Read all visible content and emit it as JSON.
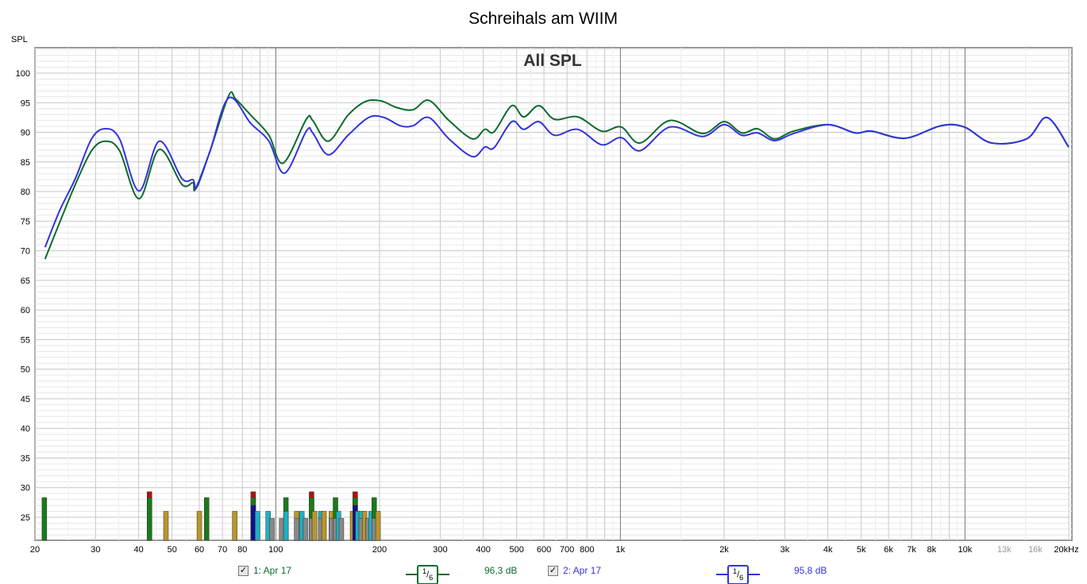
{
  "chart_data": {
    "type": "line",
    "title": "Schreihals am WIIM",
    "subtitle": "All SPL",
    "ylabel": "SPL",
    "xlabel": "Hz",
    "xscale": "log",
    "xlim": [
      20,
      20000
    ],
    "ylim": [
      21,
      104.3
    ],
    "yticks": [
      25,
      30,
      35,
      40,
      45,
      50,
      55,
      60,
      65,
      70,
      75,
      80,
      85,
      90,
      95,
      100
    ],
    "xticks": [
      {
        "v": 20,
        "l": "20"
      },
      {
        "v": 30,
        "l": "30"
      },
      {
        "v": 40,
        "l": "40"
      },
      {
        "v": 50,
        "l": "50"
      },
      {
        "v": 60,
        "l": "60"
      },
      {
        "v": 70,
        "l": "70"
      },
      {
        "v": 80,
        "l": "80"
      },
      {
        "v": 100,
        "l": "100"
      },
      {
        "v": 200,
        "l": "200"
      },
      {
        "v": 300,
        "l": "300"
      },
      {
        "v": 400,
        "l": "400"
      },
      {
        "v": 500,
        "l": "500"
      },
      {
        "v": 600,
        "l": "600"
      },
      {
        "v": 700,
        "l": "700"
      },
      {
        "v": 800,
        "l": "800"
      },
      {
        "v": 1000,
        "l": "1k"
      },
      {
        "v": 2000,
        "l": "2k"
      },
      {
        "v": 3000,
        "l": "3k"
      },
      {
        "v": 4000,
        "l": "4k"
      },
      {
        "v": 5000,
        "l": "5k"
      },
      {
        "v": 6000,
        "l": "6k"
      },
      {
        "v": 7000,
        "l": "7k"
      },
      {
        "v": 8000,
        "l": "8k"
      },
      {
        "v": 10000,
        "l": "10k"
      },
      {
        "v": 13000,
        "l": "13k",
        "muted": true
      },
      {
        "v": 16000,
        "l": "16k",
        "muted": true
      },
      {
        "v": 20000,
        "l": "20kHz"
      }
    ],
    "grid": true,
    "series": [
      {
        "name": "1: Apr 17",
        "color": "#0b6b2e",
        "smoothing": "1/6",
        "level": "96,3 dB",
        "visible": true,
        "points": [
          [
            21.4,
            68.6
          ],
          [
            23.6,
            74.8
          ],
          [
            26.2,
            81.2
          ],
          [
            29.2,
            86.9
          ],
          [
            32,
            88.5
          ],
          [
            35.2,
            86.9
          ],
          [
            40.1,
            78.8
          ],
          [
            45.9,
            87.1
          ],
          [
            53.4,
            81.2
          ],
          [
            57.5,
            81.5
          ],
          [
            58.4,
            80.4
          ],
          [
            64.5,
            86.9
          ],
          [
            73,
            96.2
          ],
          [
            76.5,
            95.6
          ],
          [
            84.6,
            92.9
          ],
          [
            95.5,
            89.5
          ],
          [
            105,
            84.8
          ],
          [
            122.6,
            92.2
          ],
          [
            128,
            92
          ],
          [
            142,
            88.5
          ],
          [
            162,
            92.9
          ],
          [
            182,
            95.2
          ],
          [
            202,
            95.3
          ],
          [
            224,
            94.2
          ],
          [
            250,
            93.8
          ],
          [
            278,
            95.4
          ],
          [
            318,
            92
          ],
          [
            372,
            88.9
          ],
          [
            404,
            90.5
          ],
          [
            430,
            90.1
          ],
          [
            484,
            94.5
          ],
          [
            524,
            92.6
          ],
          [
            580,
            94.5
          ],
          [
            644,
            92.2
          ],
          [
            752,
            92.6
          ],
          [
            883,
            90.2
          ],
          [
            1005,
            90.9
          ],
          [
            1141,
            88.2
          ],
          [
            1392,
            92
          ],
          [
            1733,
            89.8
          ],
          [
            2000,
            91.8
          ],
          [
            2250,
            89.9
          ],
          [
            2500,
            90.6
          ],
          [
            2800,
            88.9
          ],
          [
            3180,
            90.2
          ],
          [
            4000,
            91.3
          ],
          [
            4800,
            89.9
          ],
          [
            5350,
            90.2
          ],
          [
            6700,
            89
          ],
          [
            8500,
            91.1
          ],
          [
            9950,
            90.9
          ],
          [
            11950,
            88.2
          ],
          [
            15100,
            88.9
          ],
          [
            17300,
            92.5
          ],
          [
            20000,
            87.5
          ]
        ]
      },
      {
        "name": "2: Apr 17",
        "color": "#3333dd",
        "smoothing": "1/6",
        "level": "95,8 dB",
        "visible": true,
        "points": [
          [
            21.4,
            70.6
          ],
          [
            23.6,
            76.8
          ],
          [
            26.2,
            82.2
          ],
          [
            29.2,
            88.9
          ],
          [
            32,
            90.6
          ],
          [
            35.2,
            88.9
          ],
          [
            40.1,
            80.1
          ],
          [
            45.9,
            88.5
          ],
          [
            53.4,
            82.2
          ],
          [
            57.5,
            82
          ],
          [
            59,
            80.7
          ],
          [
            64.5,
            86.9
          ],
          [
            73,
            95.8
          ],
          [
            84.6,
            91.5
          ],
          [
            95.5,
            88.5
          ],
          [
            106,
            83.1
          ],
          [
            122.6,
            90.2
          ],
          [
            128,
            89.9
          ],
          [
            142,
            86.2
          ],
          [
            162,
            89.5
          ],
          [
            186,
            92.5
          ],
          [
            206,
            92.5
          ],
          [
            230,
            91.1
          ],
          [
            250,
            91.1
          ],
          [
            278,
            92.5
          ],
          [
            318,
            88.9
          ],
          [
            372,
            85.9
          ],
          [
            404,
            87.5
          ],
          [
            430,
            87.4
          ],
          [
            484,
            91.8
          ],
          [
            524,
            90.5
          ],
          [
            580,
            91.8
          ],
          [
            644,
            89.5
          ],
          [
            752,
            90.5
          ],
          [
            883,
            87.9
          ],
          [
            1005,
            89.1
          ],
          [
            1141,
            86.9
          ],
          [
            1392,
            90.9
          ],
          [
            1733,
            89.3
          ],
          [
            2000,
            91.3
          ],
          [
            2250,
            89.5
          ],
          [
            2500,
            89.9
          ],
          [
            2800,
            88.6
          ],
          [
            3180,
            89.8
          ],
          [
            4000,
            91.3
          ],
          [
            4800,
            89.9
          ],
          [
            5350,
            90.2
          ],
          [
            6700,
            89
          ],
          [
            8500,
            91.1
          ],
          [
            9950,
            90.9
          ],
          [
            11950,
            88.2
          ],
          [
            15100,
            88.9
          ],
          [
            17300,
            92.5
          ],
          [
            20000,
            87.5
          ]
        ]
      }
    ],
    "mode_bars": [
      {
        "f": 21.3,
        "segs": [
          [
            "#1a7a1a",
            28.3
          ]
        ]
      },
      {
        "f": 43,
        "segs": [
          [
            "#b01010",
            29.3
          ],
          [
            "#1a7a1a",
            28.3
          ]
        ]
      },
      {
        "f": 48,
        "segs": [
          [
            "#b8962a",
            26
          ]
        ]
      },
      {
        "f": 60,
        "segs": [
          [
            "#b8962a",
            26
          ]
        ]
      },
      {
        "f": 63,
        "segs": [
          [
            "#1a7a1a",
            28.3
          ]
        ]
      },
      {
        "f": 76,
        "segs": [
          [
            "#b8962a",
            26
          ]
        ]
      },
      {
        "f": 86,
        "segs": [
          [
            "#b01010",
            29.3
          ],
          [
            "#1a7a1a",
            28.3
          ],
          [
            "#101090",
            27
          ]
        ]
      },
      {
        "f": 88.5,
        "segs": [
          [
            "#20b0c0",
            26
          ]
        ]
      },
      {
        "f": 95,
        "segs": [
          [
            "#20b0c0",
            26
          ]
        ]
      },
      {
        "f": 97.5,
        "segs": [
          [
            "#888888",
            24.8
          ]
        ]
      },
      {
        "f": 104,
        "segs": [
          [
            "#888888",
            24.8
          ]
        ]
      },
      {
        "f": 107,
        "segs": [
          [
            "#1a7a1a",
            28.3
          ],
          [
            "#20b0c0",
            26
          ]
        ]
      },
      {
        "f": 115,
        "segs": [
          [
            "#b8962a",
            26
          ],
          [
            "#888888",
            24.8
          ]
        ]
      },
      {
        "f": 119,
        "segs": [
          [
            "#20b0c0",
            26
          ]
        ]
      },
      {
        "f": 122,
        "segs": [
          [
            "#888888",
            24.8
          ]
        ]
      },
      {
        "f": 127,
        "segs": [
          [
            "#b01010",
            29.3
          ],
          [
            "#1a7a1a",
            28.3
          ],
          [
            "#888888",
            24.8
          ]
        ]
      },
      {
        "f": 129.5,
        "segs": [
          [
            "#b8962a",
            26
          ]
        ]
      },
      {
        "f": 135,
        "segs": [
          [
            "#20b0c0",
            26
          ],
          [
            "#888888",
            24.8
          ]
        ]
      },
      {
        "f": 138,
        "segs": [
          [
            "#b8962a",
            26
          ]
        ]
      },
      {
        "f": 145,
        "segs": [
          [
            "#b8962a",
            26
          ],
          [
            "#888888",
            24.8
          ]
        ]
      },
      {
        "f": 149,
        "segs": [
          [
            "#1a7a1a",
            28.3
          ],
          [
            "#888888",
            24.8
          ]
        ]
      },
      {
        "f": 152,
        "segs": [
          [
            "#20b0c0",
            26
          ]
        ]
      },
      {
        "f": 155,
        "segs": [
          [
            "#888888",
            24.8
          ]
        ]
      },
      {
        "f": 167,
        "segs": [
          [
            "#b8962a",
            26
          ]
        ]
      },
      {
        "f": 170,
        "segs": [
          [
            "#b01010",
            29.3
          ],
          [
            "#1a7a1a",
            28.3
          ],
          [
            "#101090",
            27
          ]
        ]
      },
      {
        "f": 173,
        "segs": [
          [
            "#20b0c0",
            26
          ]
        ]
      },
      {
        "f": 177,
        "segs": [
          [
            "#20b0c0",
            26
          ],
          [
            "#888888",
            24.8
          ]
        ]
      },
      {
        "f": 181,
        "segs": [
          [
            "#b8962a",
            26
          ]
        ]
      },
      {
        "f": 185,
        "segs": [
          [
            "#888888",
            24.8
          ]
        ]
      },
      {
        "f": 189,
        "segs": [
          [
            "#20b0c0",
            26
          ]
        ]
      },
      {
        "f": 193,
        "segs": [
          [
            "#1a7a1a",
            28.3
          ],
          [
            "#888888",
            24.8
          ]
        ]
      },
      {
        "f": 198,
        "segs": [
          [
            "#b8962a",
            26
          ]
        ]
      }
    ]
  },
  "legend": [
    {
      "check": "✓",
      "name": "1: Apr 17",
      "smoothing_num": "1",
      "smoothing_den": "6",
      "level": "96,3 dB"
    },
    {
      "check": "✓",
      "name": "2: Apr 17",
      "smoothing_num": "1",
      "smoothing_den": "6",
      "level": "95,8 dB"
    }
  ]
}
